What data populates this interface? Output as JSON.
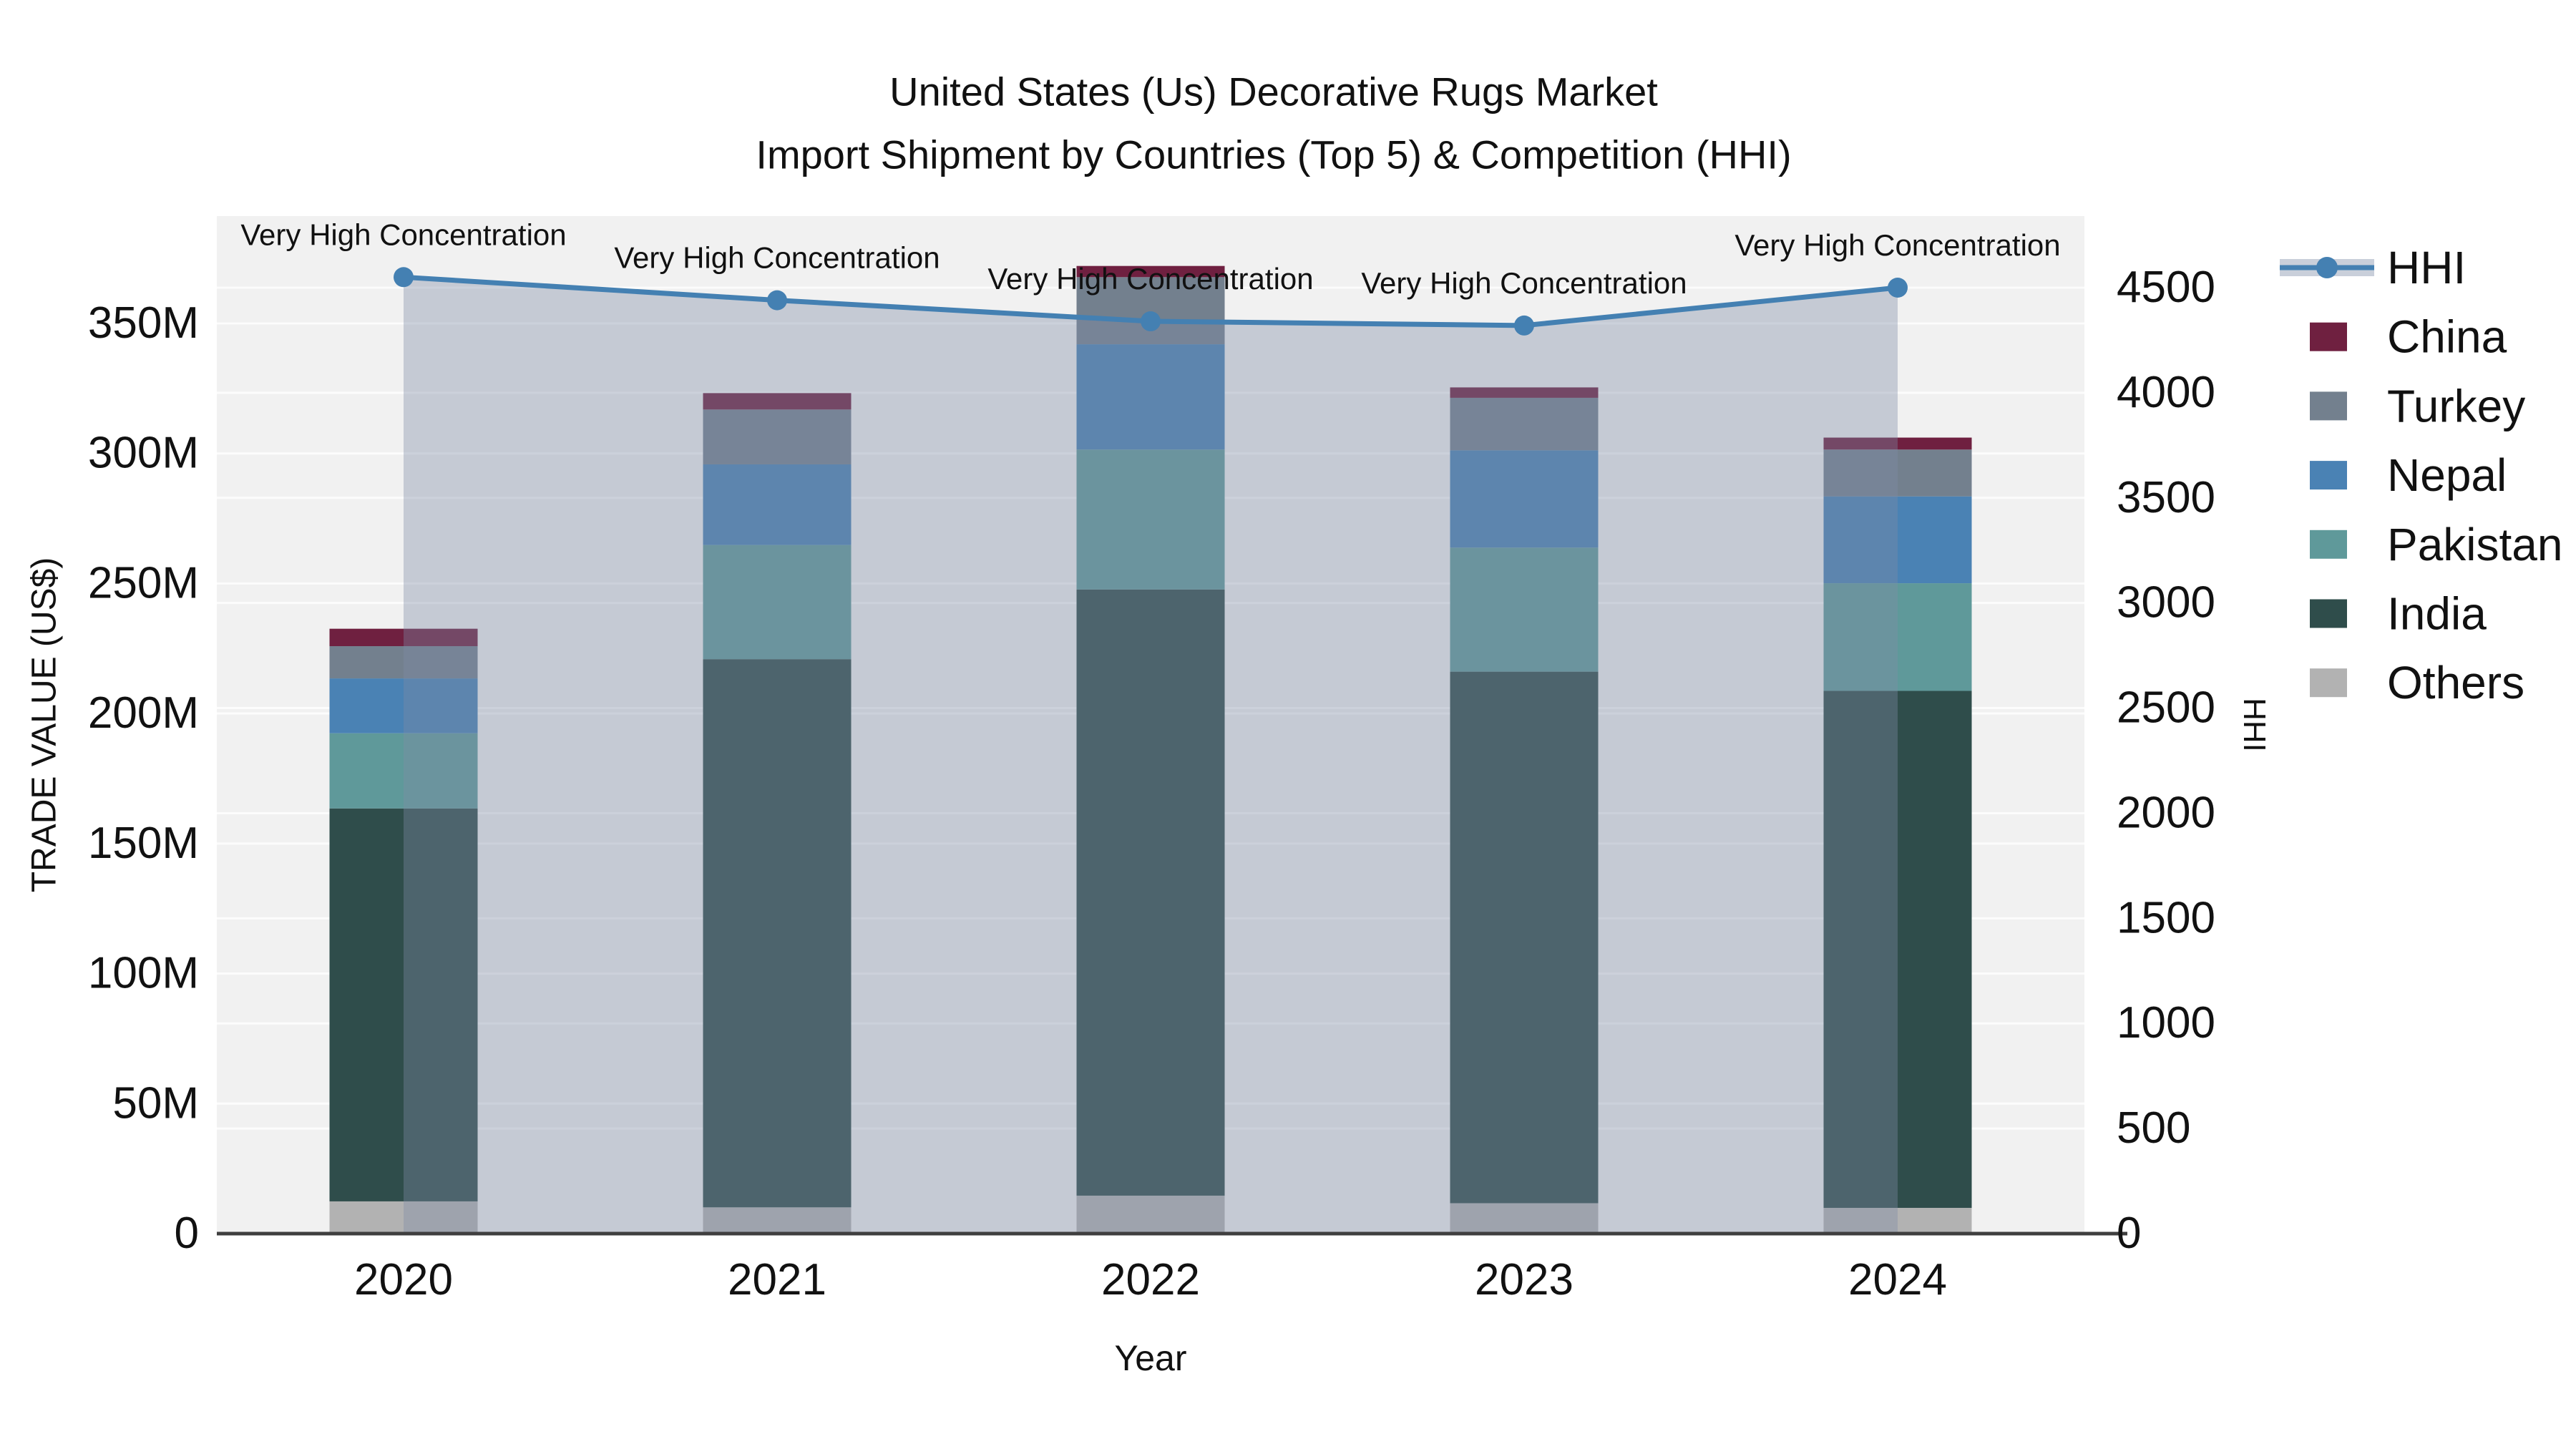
{
  "title": {
    "line1": "United States (Us) Decorative Rugs Market",
    "line2": "Import Shipment by Countries (Top 5) & Competition (HHI)"
  },
  "axes": {
    "x": {
      "title": "Year",
      "ticks": [
        "2020",
        "2021",
        "2022",
        "2023",
        "2024"
      ]
    },
    "y_left": {
      "title": "TRADE VALUE (US$)",
      "tick_labels": [
        "0",
        "50M",
        "100M",
        "150M",
        "200M",
        "250M",
        "300M",
        "350M"
      ],
      "tick_values": [
        0,
        50,
        100,
        150,
        200,
        250,
        300,
        350
      ],
      "range": [
        0,
        391
      ]
    },
    "y_right": {
      "title": "HHI",
      "tick_labels": [
        "0",
        "500",
        "1000",
        "1500",
        "2000",
        "2500",
        "3000",
        "3500",
        "4000",
        "4500"
      ],
      "tick_values": [
        0,
        500,
        1000,
        1500,
        2000,
        2500,
        3000,
        3500,
        4000,
        4500
      ],
      "range": [
        0,
        4840
      ]
    }
  },
  "legend": {
    "items": [
      {
        "label": "HHI",
        "type": "line",
        "color": "#4480b2"
      },
      {
        "label": "China",
        "type": "swatch",
        "color": "#6f2040"
      },
      {
        "label": "Turkey",
        "type": "swatch",
        "color": "#73808e"
      },
      {
        "label": "Nepal",
        "type": "swatch",
        "color": "#4a82b4"
      },
      {
        "label": "Pakistan",
        "type": "swatch",
        "color": "#5f999a"
      },
      {
        "label": "India",
        "type": "swatch",
        "color": "#2f4d4b"
      },
      {
        "label": "Others",
        "type": "swatch",
        "color": "#b2b2b2"
      }
    ]
  },
  "annotations": {
    "text": "Very High Concentration"
  },
  "colors": {
    "plot_bg": "#f1f1f1",
    "gridline": "#ffffff",
    "axis_line": "#3f3f3f",
    "hhi_line": "#4480b2",
    "hhi_band_fill": "rgba(125,140,165,0.38)",
    "legend_band": "#c9cfda",
    "text": "#111111"
  },
  "chart_data": {
    "type": "bar",
    "subtype": "stacked-with-line",
    "title": "United States (Us) Decorative Rugs Market — Import Shipment by Countries (Top 5) & Competition (HHI)",
    "xlabel": "Year",
    "ylabel_left": "TRADE VALUE (US$)",
    "ylabel_right": "HHI",
    "x": [
      "2020",
      "2021",
      "2022",
      "2023",
      "2024"
    ],
    "values_unit": "million US$",
    "bar_series": [
      {
        "name": "Others",
        "color": "#b2b2b2",
        "values": [
          12.4,
          10.1,
          14.6,
          11.7,
          9.9
        ]
      },
      {
        "name": "India",
        "color": "#2f4d4b",
        "values": [
          151.1,
          210.8,
          233.1,
          204.4,
          198.8
        ]
      },
      {
        "name": "Pakistan",
        "color": "#5f999a",
        "values": [
          28.9,
          43.9,
          53.8,
          47.7,
          41.4
        ]
      },
      {
        "name": "Nepal",
        "color": "#4a82b4",
        "values": [
          21.1,
          31.0,
          40.5,
          37.4,
          33.4
        ]
      },
      {
        "name": "Turkey",
        "color": "#73808e",
        "values": [
          12.4,
          21.1,
          25.8,
          20.2,
          18.0
        ]
      },
      {
        "name": "China",
        "color": "#6f2040",
        "values": [
          6.7,
          6.3,
          4.3,
          4.0,
          4.6
        ]
      }
    ],
    "bar_totals": [
      232.6,
      323.2,
      372.1,
      325.4,
      306.1
    ],
    "line_series": {
      "name": "HHI",
      "color": "#4480b2",
      "values": [
        4550,
        4440,
        4340,
        4320,
        4500
      ],
      "area_band": true
    },
    "point_annotations": [
      "Very High Concentration",
      "Very High Concentration",
      "Very High Concentration",
      "Very High Concentration",
      "Very High Concentration"
    ],
    "ylim_left": [
      0,
      391
    ],
    "ylim_right": [
      0,
      4840
    ],
    "grid": true,
    "legend_position": "right"
  }
}
